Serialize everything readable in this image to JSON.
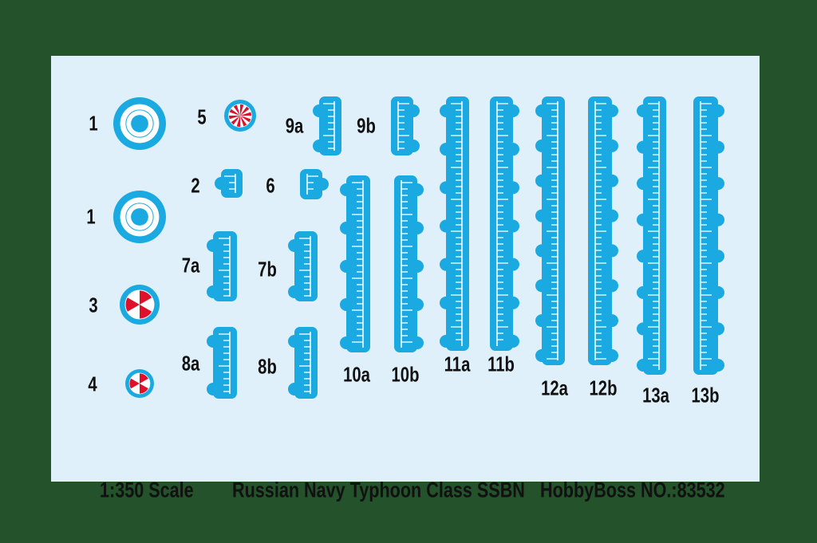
{
  "colors": {
    "background": "#23522b",
    "sheet": "#dff0fa",
    "decal_blue": "#1aa9e0",
    "red": "#e0102a",
    "white": "#ffffff"
  },
  "roundels": [
    {
      "label": "1",
      "type": "blue-white-roundel"
    },
    {
      "label": "1",
      "type": "blue-white-roundel"
    },
    {
      "label": "3",
      "type": "red-white-star-roundel"
    },
    {
      "label": "4",
      "type": "red-white-star-roundel"
    },
    {
      "label": "5",
      "type": "red-white-rays-roundel"
    }
  ],
  "draught_marks": [
    {
      "label": "2"
    },
    {
      "label": "6"
    },
    {
      "label": "9a"
    },
    {
      "label": "9b"
    },
    {
      "label": "7a"
    },
    {
      "label": "7b"
    },
    {
      "label": "8a"
    },
    {
      "label": "8b"
    },
    {
      "label": "10a"
    },
    {
      "label": "10b"
    },
    {
      "label": "11a"
    },
    {
      "label": "11b"
    },
    {
      "label": "12a"
    },
    {
      "label": "12b"
    },
    {
      "label": "13a"
    },
    {
      "label": "13b"
    }
  ],
  "footer": {
    "scale": "1:350  Scale",
    "title": "Russian Navy Typhoon Class SSBN",
    "brand": "HobbyBoss  NO.:83532"
  }
}
